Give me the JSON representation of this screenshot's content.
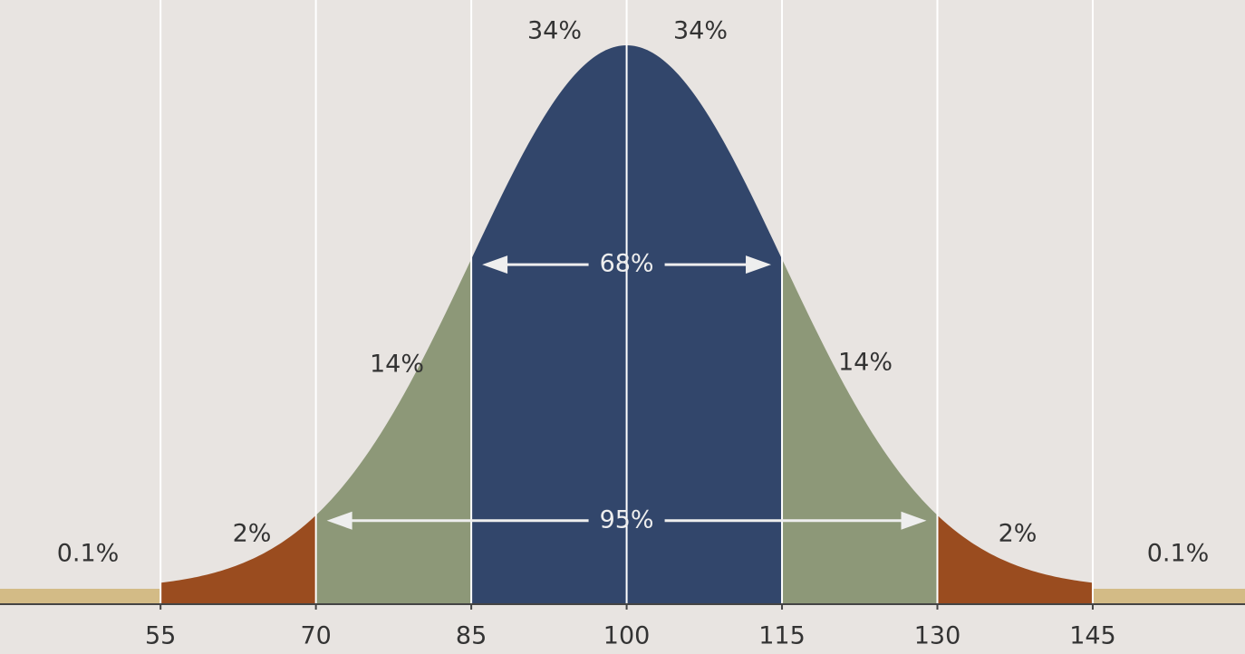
{
  "chart_data": {
    "type": "normal",
    "mean": 100,
    "sd": 15,
    "xlim": [
      39.5,
      159.7
    ],
    "xticks": [
      55,
      70,
      85,
      100,
      115,
      130,
      145
    ],
    "values": [
      0.1,
      2,
      14,
      34,
      34,
      14,
      2,
      0.1
    ],
    "value_labels": [
      "0.1%",
      "2%",
      "14%",
      "34%",
      "34%",
      "14%",
      "2%",
      "0.1%"
    ],
    "colors": [
      "#d3bb86",
      "#9a4c1f",
      "#8d9878",
      "#32466b",
      "#32466b",
      "#8d9878",
      "#9a4c1f",
      "#d3bb86"
    ],
    "spans": [
      {
        "value": 68,
        "label": "68%",
        "from": 85,
        "to": 115
      },
      {
        "value": 95,
        "label": "95%",
        "from": 70,
        "to": 130
      }
    ],
    "grid": true
  }
}
